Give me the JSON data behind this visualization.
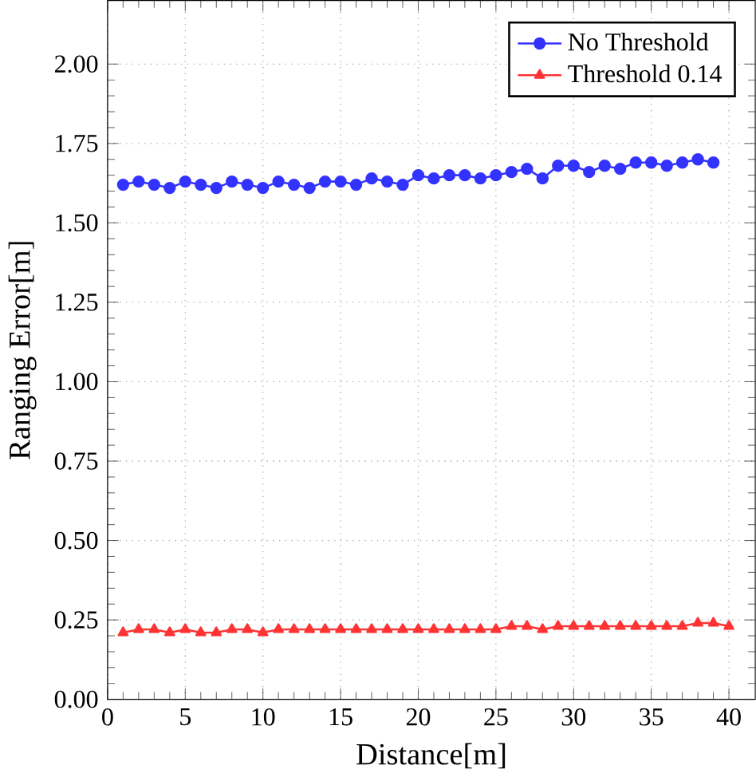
{
  "chart_data": {
    "type": "line",
    "xlabel": "Distance[m]",
    "ylabel": "Ranging Error[m]",
    "xlim": [
      0,
      41.7
    ],
    "ylim": [
      0,
      2.2
    ],
    "xticks": [
      0,
      5,
      10,
      15,
      20,
      25,
      30,
      35,
      40
    ],
    "yticks": [
      {
        "value": 0,
        "label": "0.00"
      },
      {
        "value": 0.25,
        "label": "0.25"
      },
      {
        "value": 0.5,
        "label": "0.50"
      },
      {
        "value": 0.75,
        "label": "0.75"
      },
      {
        "value": 1,
        "label": "1.00"
      },
      {
        "value": 1.25,
        "label": "1.25"
      },
      {
        "value": 1.5,
        "label": "1.50"
      },
      {
        "value": 1.75,
        "label": "1.75"
      },
      {
        "value": 2,
        "label": "2.00"
      }
    ],
    "grid": true,
    "legend": "top right",
    "line_style": "solid",
    "series": [
      {
        "name": "No Threshold",
        "color": "#3333ff",
        "marker": "circle",
        "x": [
          1,
          2,
          3,
          4,
          5,
          6,
          7,
          8,
          9,
          10,
          11,
          12,
          13,
          14,
          15,
          16,
          17,
          18,
          19,
          20,
          21,
          22,
          23,
          24,
          25,
          26,
          27,
          28,
          29,
          30,
          31,
          32,
          33,
          34,
          35,
          36,
          37,
          38,
          39
        ],
        "values": [
          1.62,
          1.63,
          1.62,
          1.61,
          1.63,
          1.62,
          1.61,
          1.63,
          1.62,
          1.61,
          1.63,
          1.62,
          1.61,
          1.63,
          1.63,
          1.62,
          1.64,
          1.63,
          1.62,
          1.65,
          1.64,
          1.65,
          1.65,
          1.64,
          1.65,
          1.66,
          1.67,
          1.64,
          1.68,
          1.68,
          1.66,
          1.68,
          1.67,
          1.69,
          1.69,
          1.68,
          1.69,
          1.7,
          1.69
        ]
      },
      {
        "name": "Threshold 0.14",
        "color": "#ff3333",
        "marker": "triangle",
        "x": [
          1,
          2,
          3,
          4,
          5,
          6,
          7,
          8,
          9,
          10,
          11,
          12,
          13,
          14,
          15,
          16,
          17,
          18,
          19,
          20,
          21,
          22,
          23,
          24,
          25,
          26,
          27,
          28,
          29,
          30,
          31,
          32,
          33,
          34,
          35,
          36,
          37,
          38,
          39,
          40
        ],
        "values": [
          0.21,
          0.22,
          0.22,
          0.21,
          0.22,
          0.21,
          0.21,
          0.22,
          0.22,
          0.21,
          0.22,
          0.22,
          0.22,
          0.22,
          0.22,
          0.22,
          0.22,
          0.22,
          0.22,
          0.22,
          0.22,
          0.22,
          0.22,
          0.22,
          0.22,
          0.23,
          0.23,
          0.22,
          0.23,
          0.23,
          0.23,
          0.23,
          0.23,
          0.23,
          0.23,
          0.23,
          0.23,
          0.24,
          0.24,
          0.23
        ]
      }
    ]
  }
}
